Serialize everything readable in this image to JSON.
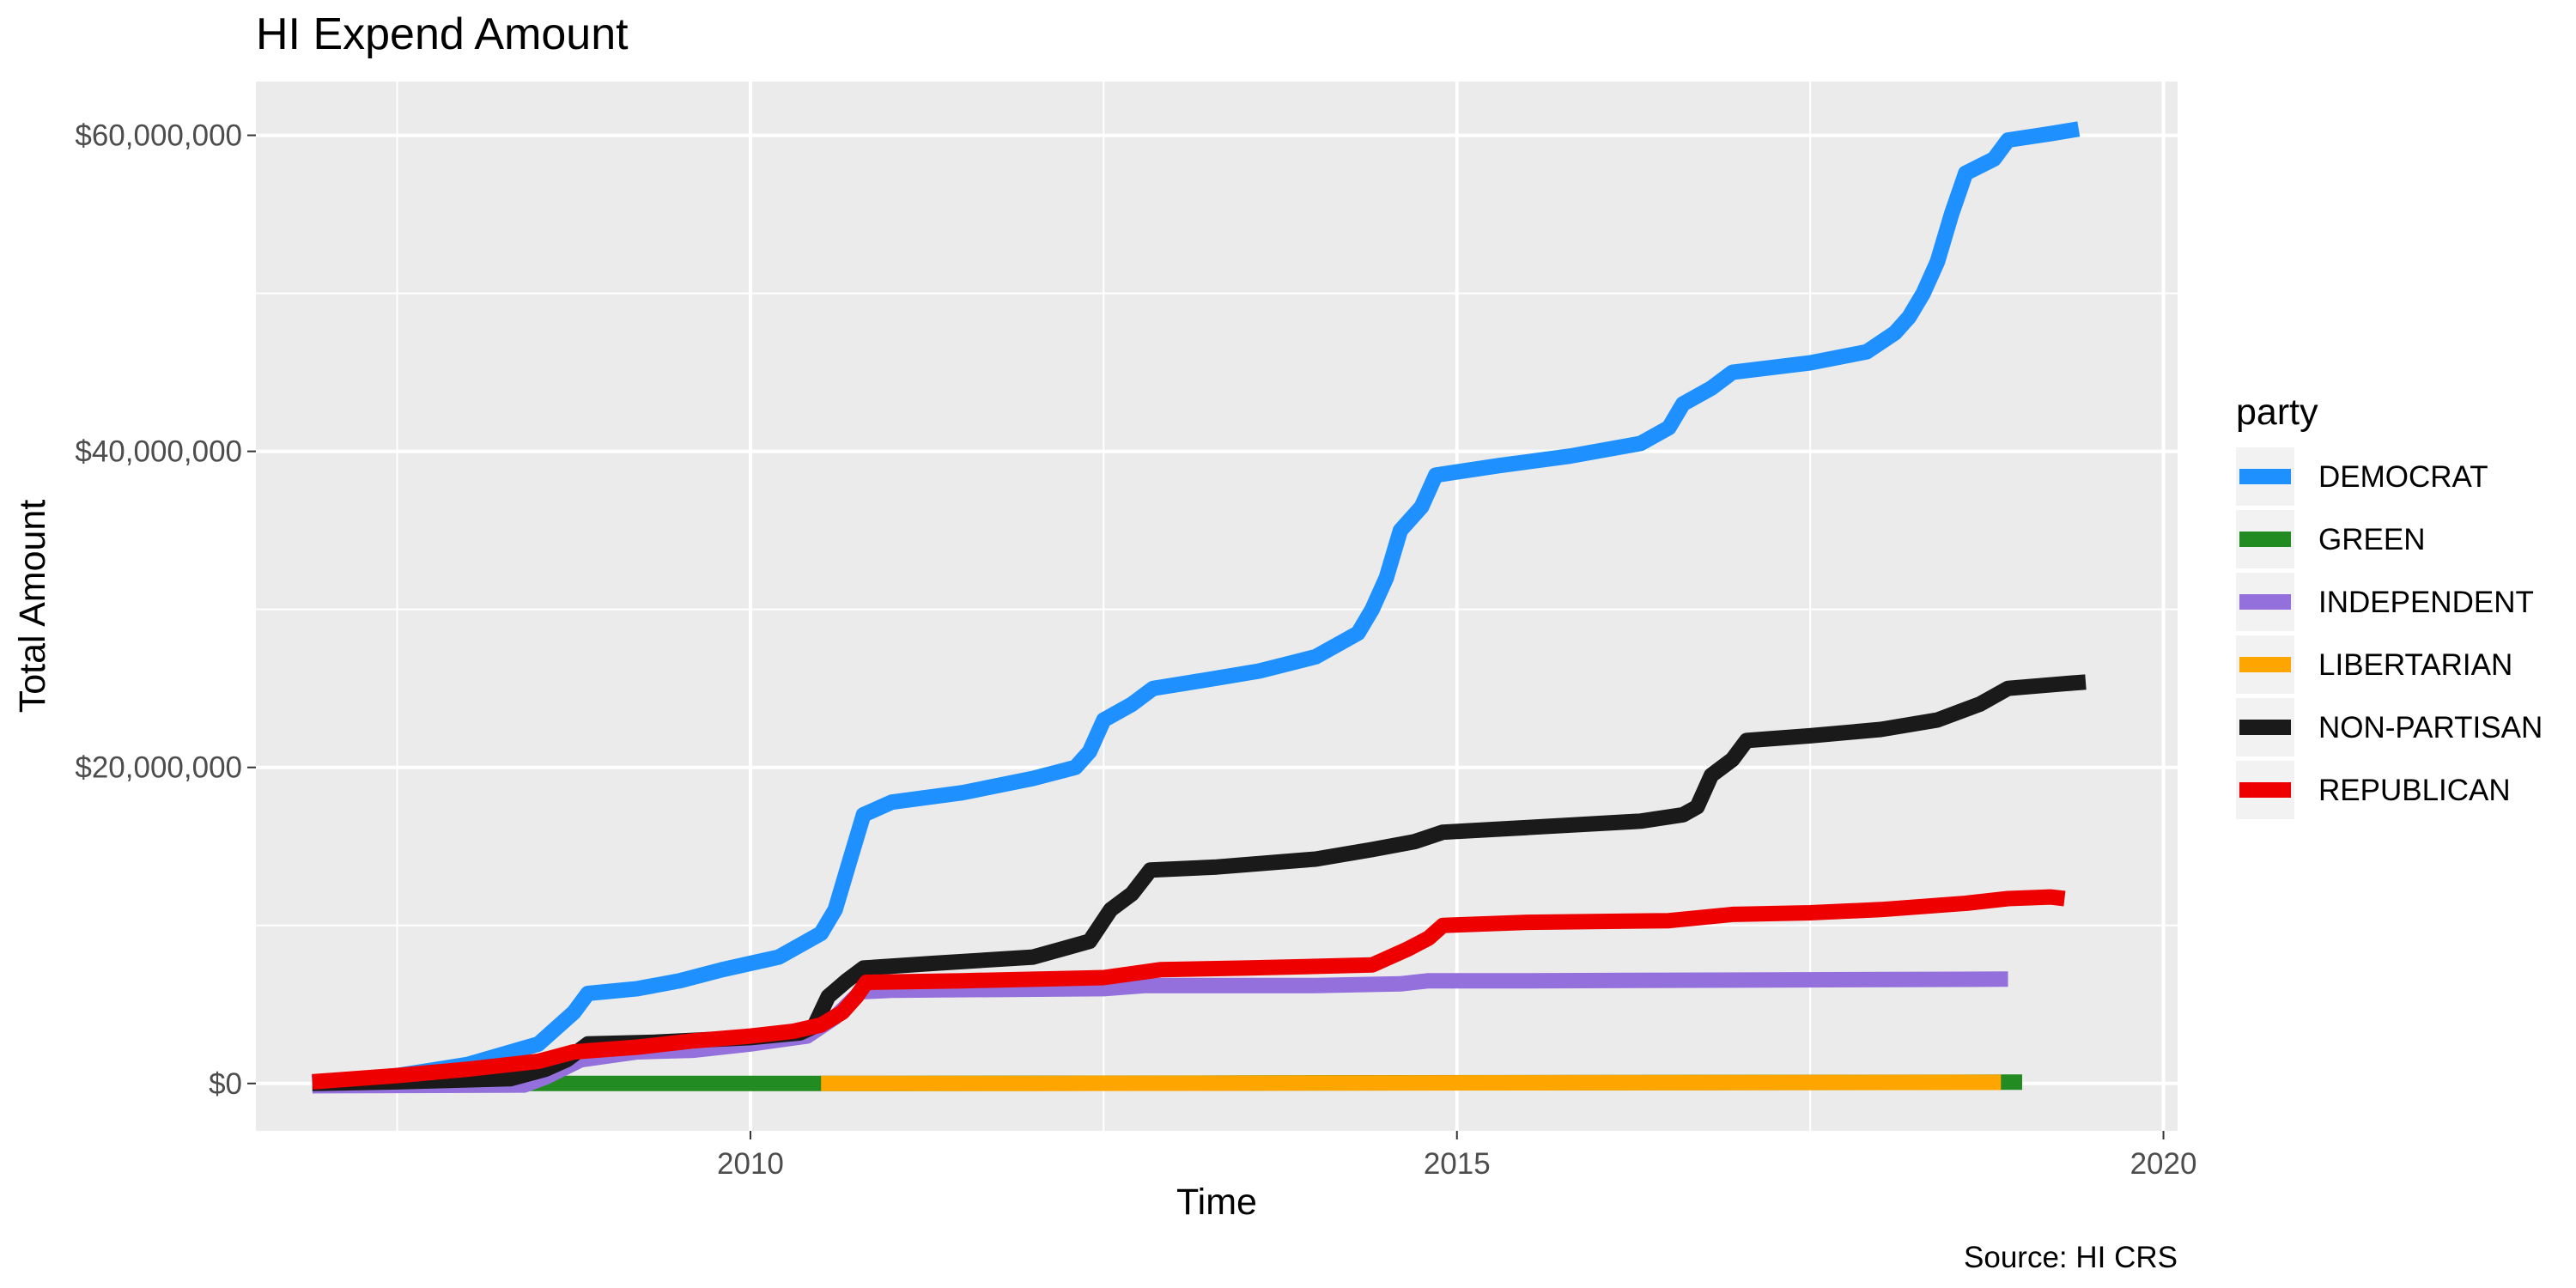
{
  "chart_data": {
    "type": "line",
    "title": "HI Expend Amount",
    "xlabel": "Time",
    "ylabel": "Total Amount",
    "caption": "Source: HI CRS",
    "xlim": [
      2006.5,
      2020.1
    ],
    "ylim": [
      -3000000,
      63400000
    ],
    "x_ticks": [
      2010,
      2015,
      2020
    ],
    "x_tick_labels": [
      "2010",
      "2015",
      "2020"
    ],
    "y_ticks": [
      0,
      20000000,
      40000000,
      60000000
    ],
    "y_tick_labels": [
      "$0",
      "$20,000,000",
      "$40,000,000",
      "$60,000,000"
    ],
    "grid": true,
    "legend": {
      "title": "party",
      "position": "right"
    },
    "series": [
      {
        "name": "DEMOCRAT",
        "color": "#1E90FF",
        "points": [
          [
            2006.9,
            0
          ],
          [
            2007.5,
            500000
          ],
          [
            2008,
            1200000
          ],
          [
            2008.5,
            2500000
          ],
          [
            2008.75,
            4500000
          ],
          [
            2008.85,
            5700000
          ],
          [
            2009.2,
            6000000
          ],
          [
            2009.5,
            6500000
          ],
          [
            2009.8,
            7200000
          ],
          [
            2010.2,
            8000000
          ],
          [
            2010.5,
            9500000
          ],
          [
            2010.6,
            11000000
          ],
          [
            2010.7,
            14000000
          ],
          [
            2010.8,
            17000000
          ],
          [
            2011,
            17800000
          ],
          [
            2011.5,
            18400000
          ],
          [
            2012,
            19300000
          ],
          [
            2012.3,
            20000000
          ],
          [
            2012.4,
            21000000
          ],
          [
            2012.5,
            23000000
          ],
          [
            2012.7,
            24000000
          ],
          [
            2012.85,
            25000000
          ],
          [
            2013.2,
            25500000
          ],
          [
            2013.6,
            26100000
          ],
          [
            2014,
            27000000
          ],
          [
            2014.3,
            28500000
          ],
          [
            2014.4,
            30000000
          ],
          [
            2014.5,
            32000000
          ],
          [
            2014.6,
            35000000
          ],
          [
            2014.75,
            36500000
          ],
          [
            2014.85,
            38500000
          ],
          [
            2015.3,
            39100000
          ],
          [
            2015.8,
            39700000
          ],
          [
            2016.3,
            40500000
          ],
          [
            2016.5,
            41500000
          ],
          [
            2016.6,
            43000000
          ],
          [
            2016.8,
            44000000
          ],
          [
            2016.95,
            45000000
          ],
          [
            2017.5,
            45600000
          ],
          [
            2017.9,
            46300000
          ],
          [
            2018.1,
            47500000
          ],
          [
            2018.2,
            48500000
          ],
          [
            2018.3,
            50000000
          ],
          [
            2018.4,
            52000000
          ],
          [
            2018.5,
            55000000
          ],
          [
            2018.6,
            57600000
          ],
          [
            2018.8,
            58500000
          ],
          [
            2018.9,
            59700000
          ],
          [
            2019.2,
            60100000
          ],
          [
            2019.4,
            60400000
          ]
        ]
      },
      {
        "name": "GREEN",
        "color": "#228B22",
        "points": [
          [
            2006.9,
            0
          ],
          [
            2010.5,
            0
          ],
          [
            2018.9,
            80000
          ],
          [
            2019.0,
            80000
          ]
        ]
      },
      {
        "name": "INDEPENDENT",
        "color": "#9370DB",
        "points": [
          [
            2006.9,
            -150000
          ],
          [
            2008.4,
            -100000
          ],
          [
            2008.55,
            400000
          ],
          [
            2008.8,
            1500000
          ],
          [
            2009.2,
            2000000
          ],
          [
            2009.6,
            2100000
          ],
          [
            2010,
            2500000
          ],
          [
            2010.4,
            3000000
          ],
          [
            2010.6,
            4200000
          ],
          [
            2010.78,
            5800000
          ],
          [
            2011,
            5900000
          ],
          [
            2012.5,
            6000000
          ],
          [
            2012.8,
            6200000
          ],
          [
            2014,
            6200000
          ],
          [
            2014.6,
            6300000
          ],
          [
            2014.8,
            6500000
          ],
          [
            2015.5,
            6500000
          ],
          [
            2018.9,
            6600000
          ]
        ]
      },
      {
        "name": "LIBERTARIAN",
        "color": "#FFA500",
        "points": [
          [
            2010.5,
            0
          ],
          [
            2012,
            0
          ],
          [
            2014,
            30000
          ],
          [
            2016,
            50000
          ],
          [
            2018.85,
            70000
          ]
        ]
      },
      {
        "name": "NON-PARTISAN",
        "color": "#1A1A1A",
        "points": [
          [
            2006.9,
            0
          ],
          [
            2007.5,
            100000
          ],
          [
            2008.3,
            300000
          ],
          [
            2008.55,
            900000
          ],
          [
            2008.7,
            1500000
          ],
          [
            2008.85,
            2500000
          ],
          [
            2009.3,
            2600000
          ],
          [
            2010,
            2900000
          ],
          [
            2010.35,
            3200000
          ],
          [
            2010.45,
            3600000
          ],
          [
            2010.55,
            5500000
          ],
          [
            2010.68,
            6500000
          ],
          [
            2010.8,
            7300000
          ],
          [
            2011.3,
            7600000
          ],
          [
            2012,
            8000000
          ],
          [
            2012.2,
            8500000
          ],
          [
            2012.4,
            9000000
          ],
          [
            2012.55,
            11000000
          ],
          [
            2012.7,
            12000000
          ],
          [
            2012.83,
            13500000
          ],
          [
            2013.3,
            13700000
          ],
          [
            2014,
            14200000
          ],
          [
            2014.4,
            14800000
          ],
          [
            2014.7,
            15300000
          ],
          [
            2014.9,
            15900000
          ],
          [
            2015.5,
            16200000
          ],
          [
            2016.3,
            16600000
          ],
          [
            2016.6,
            17000000
          ],
          [
            2016.7,
            17500000
          ],
          [
            2016.8,
            19500000
          ],
          [
            2016.95,
            20500000
          ],
          [
            2017.05,
            21700000
          ],
          [
            2017.5,
            22000000
          ],
          [
            2018,
            22400000
          ],
          [
            2018.4,
            23000000
          ],
          [
            2018.7,
            24000000
          ],
          [
            2018.9,
            25000000
          ],
          [
            2019.3,
            25300000
          ],
          [
            2019.45,
            25400000
          ]
        ]
      },
      {
        "name": "REPUBLICAN",
        "color": "#EE0000",
        "points": [
          [
            2006.9,
            100000
          ],
          [
            2007.5,
            500000
          ],
          [
            2008,
            900000
          ],
          [
            2008.5,
            1400000
          ],
          [
            2008.75,
            2000000
          ],
          [
            2009.2,
            2300000
          ],
          [
            2009.6,
            2700000
          ],
          [
            2010,
            3000000
          ],
          [
            2010.3,
            3300000
          ],
          [
            2010.5,
            3700000
          ],
          [
            2010.65,
            4500000
          ],
          [
            2010.75,
            5500000
          ],
          [
            2010.82,
            6400000
          ],
          [
            2011.5,
            6500000
          ],
          [
            2012.5,
            6700000
          ],
          [
            2012.9,
            7200000
          ],
          [
            2013.5,
            7300000
          ],
          [
            2014.4,
            7500000
          ],
          [
            2014.65,
            8500000
          ],
          [
            2014.8,
            9200000
          ],
          [
            2014.9,
            10000000
          ],
          [
            2015.5,
            10200000
          ],
          [
            2016.5,
            10300000
          ],
          [
            2016.95,
            10700000
          ],
          [
            2017.5,
            10800000
          ],
          [
            2018,
            11000000
          ],
          [
            2018.6,
            11400000
          ],
          [
            2018.9,
            11700000
          ],
          [
            2019.2,
            11800000
          ],
          [
            2019.3,
            11700000
          ]
        ]
      }
    ]
  }
}
